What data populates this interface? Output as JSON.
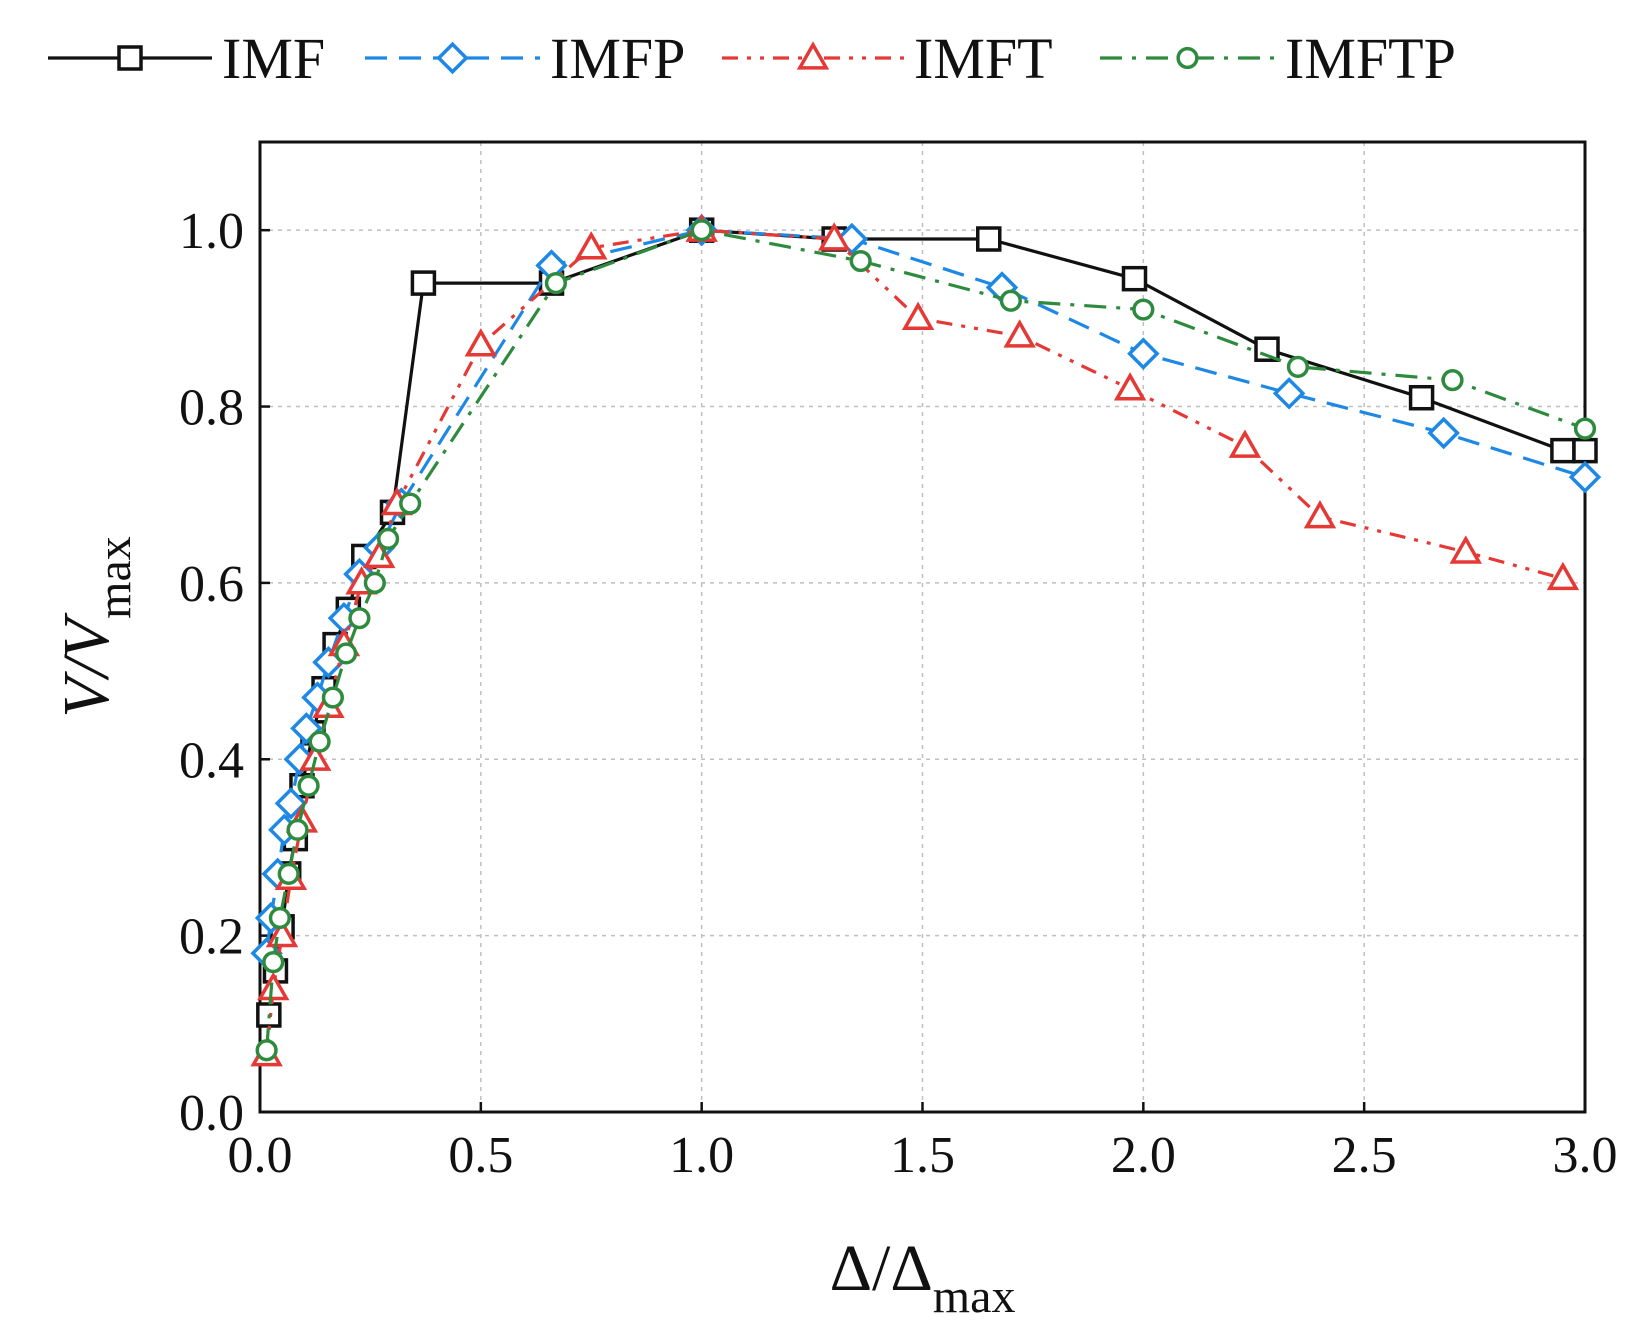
{
  "chart_data": {
    "type": "line",
    "title": "",
    "xlabel": {
      "main": "Δ/Δ",
      "sub": "max"
    },
    "ylabel": {
      "main": "V/V",
      "sub": "max"
    },
    "xlim": [
      0,
      3.0
    ],
    "ylim": [
      0,
      1.1
    ],
    "grid": true,
    "legend_position": "top",
    "x_ticks": [
      "0.0",
      "0.5",
      "1.0",
      "1.5",
      "2.0",
      "2.5",
      "3.0"
    ],
    "y_ticks": [
      "0.0",
      "0.2",
      "0.4",
      "0.6",
      "0.8",
      "1.0"
    ],
    "x_tick_values": [
      0,
      0.5,
      1.0,
      1.5,
      2.0,
      2.5,
      3.0
    ],
    "y_tick_values": [
      0,
      0.2,
      0.4,
      0.6,
      0.8,
      1.0
    ],
    "series": [
      {
        "name": "IMF",
        "color": "#111111",
        "marker": "square",
        "dash": "solid",
        "x": [
          0.02,
          0.035,
          0.05,
          0.065,
          0.08,
          0.095,
          0.12,
          0.145,
          0.17,
          0.2,
          0.235,
          0.3,
          0.37,
          0.66,
          1.0,
          1.3,
          1.65,
          1.98,
          2.28,
          2.63,
          2.95,
          3.0
        ],
        "y": [
          0.11,
          0.16,
          0.21,
          0.27,
          0.31,
          0.37,
          0.43,
          0.48,
          0.53,
          0.57,
          0.63,
          0.68,
          0.94,
          0.94,
          1.0,
          0.99,
          0.99,
          0.945,
          0.865,
          0.81,
          0.75,
          0.75
        ]
      },
      {
        "name": "IMFP",
        "color": "#1e88e5",
        "marker": "diamond",
        "dash": "dashed",
        "x": [
          0.015,
          0.025,
          0.04,
          0.055,
          0.07,
          0.09,
          0.105,
          0.13,
          0.155,
          0.19,
          0.225,
          0.27,
          0.32,
          0.66,
          1.0,
          1.34,
          1.68,
          2.0,
          2.33,
          2.68,
          3.0
        ],
        "y": [
          0.18,
          0.22,
          0.27,
          0.32,
          0.35,
          0.4,
          0.435,
          0.47,
          0.51,
          0.56,
          0.61,
          0.64,
          0.69,
          0.96,
          1.0,
          0.99,
          0.935,
          0.86,
          0.815,
          0.77,
          0.72
        ]
      },
      {
        "name": "IMFT",
        "color": "#e53935",
        "marker": "triangle",
        "dash": "dashdotdot",
        "x": [
          0.015,
          0.03,
          0.05,
          0.07,
          0.095,
          0.125,
          0.155,
          0.19,
          0.23,
          0.27,
          0.31,
          0.5,
          0.75,
          1.0,
          1.3,
          1.49,
          1.72,
          1.97,
          2.23,
          2.4,
          2.73,
          2.95
        ],
        "y": [
          0.065,
          0.14,
          0.2,
          0.265,
          0.33,
          0.4,
          0.46,
          0.53,
          0.6,
          0.63,
          0.69,
          0.87,
          0.98,
          1.0,
          0.99,
          0.9,
          0.88,
          0.82,
          0.755,
          0.675,
          0.635,
          0.605
        ]
      },
      {
        "name": "IMFTP",
        "color": "#2e8b3e",
        "marker": "circle",
        "dash": "dashdot",
        "x": [
          0.015,
          0.03,
          0.045,
          0.065,
          0.085,
          0.11,
          0.135,
          0.165,
          0.195,
          0.225,
          0.26,
          0.29,
          0.34,
          0.67,
          1.0,
          1.36,
          1.7,
          2.0,
          2.35,
          2.7,
          3.0
        ],
        "y": [
          0.07,
          0.17,
          0.22,
          0.27,
          0.32,
          0.37,
          0.42,
          0.47,
          0.52,
          0.56,
          0.6,
          0.65,
          0.69,
          0.94,
          1.0,
          0.965,
          0.92,
          0.91,
          0.845,
          0.83,
          0.775
        ]
      }
    ]
  }
}
